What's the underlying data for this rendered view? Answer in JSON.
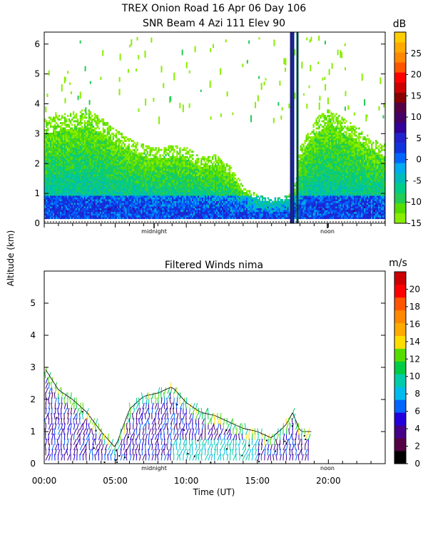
{
  "figure": {
    "title_line1": "TREX Onion Road  16 Apr 06 Day 106",
    "shared_ylabel": "Altitude (km)",
    "shared_xlabel": "Time (UT)",
    "x_tick_labels": [
      "00:00",
      "05:00",
      "10:00",
      "15:00",
      "20:00"
    ],
    "day_markers": [
      "midnight",
      "noon"
    ]
  },
  "chart_data": [
    {
      "type": "heatmap",
      "title": "SNR Beam 4 Azi 111 Elev 90",
      "xlabel": "Time (UT)",
      "ylabel": "Altitude (km)",
      "xlim": [
        0,
        24
      ],
      "ylim": [
        0,
        6.4
      ],
      "y_ticks": [
        0,
        1,
        2,
        3,
        4,
        5,
        6
      ],
      "colorbar_label": "dB",
      "colorbar_ticks": [
        -15,
        -10,
        -5,
        0,
        5,
        10,
        15,
        20,
        25
      ],
      "colorbar_levels": [
        -15,
        -12.5,
        -10,
        -7.5,
        -5,
        -2.5,
        0,
        2.5,
        5,
        7.5,
        10,
        12.5,
        15,
        17.5,
        20,
        22.5,
        25,
        27.5,
        30
      ],
      "colorbar_colors": [
        "#88ee00",
        "#55dd00",
        "#22cc55",
        "#00cc88",
        "#00bbbb",
        "#00aaee",
        "#0066ff",
        "#1133dd",
        "#2222cc",
        "#330099",
        "#440066",
        "#550044",
        "#880000",
        "#cc0000",
        "#ff0000",
        "#ff5500",
        "#ff8800",
        "#ffaa00",
        "#ffcc00"
      ],
      "echo_top_km": [
        {
          "t": 0,
          "top": 3.5
        },
        {
          "t": 1,
          "top": 3.6
        },
        {
          "t": 2,
          "top": 3.7
        },
        {
          "t": 3,
          "top": 3.8
        },
        {
          "t": 4,
          "top": 3.5
        },
        {
          "t": 5,
          "top": 3.1
        },
        {
          "t": 6,
          "top": 2.8
        },
        {
          "t": 7,
          "top": 2.6
        },
        {
          "t": 8,
          "top": 2.5
        },
        {
          "t": 9,
          "top": 2.6
        },
        {
          "t": 10,
          "top": 2.5
        },
        {
          "t": 11,
          "top": 2.2
        },
        {
          "t": 12,
          "top": 2.3
        },
        {
          "t": 13,
          "top": 1.9
        },
        {
          "t": 14,
          "top": 1.2
        },
        {
          "t": 15,
          "top": 0.9
        },
        {
          "t": 16,
          "top": 0.8
        },
        {
          "t": 17,
          "top": 0.9
        },
        {
          "t": 17.5,
          "top": 1.0
        },
        {
          "t": 18,
          "top": 2.6
        },
        {
          "t": 19,
          "top": 3.5
        },
        {
          "t": 20,
          "top": 3.8
        },
        {
          "t": 21,
          "top": 3.5
        },
        {
          "t": 22,
          "top": 3.2
        },
        {
          "t": 23,
          "top": 2.8
        },
        {
          "t": 24,
          "top": 2.6
        }
      ],
      "vertical_spike_times": [
        17.35,
        17.5,
        17.8
      ]
    },
    {
      "type": "vector",
      "title": "Filtered Winds nima",
      "xlabel": "Time (UT)",
      "ylabel": "Altitude (km)",
      "xlim": [
        0,
        24
      ],
      "ylim": [
        0,
        6
      ],
      "y_ticks": [
        0,
        1,
        2,
        3,
        4,
        5
      ],
      "colorbar_label": "m/s",
      "colorbar_ticks": [
        0,
        2,
        4,
        6,
        8,
        10,
        12,
        14,
        16,
        18,
        20
      ],
      "colorbar_colors": [
        "#000000",
        "#550044",
        "#440088",
        "#2200dd",
        "#0066ff",
        "#00bbee",
        "#00ccaa",
        "#00cc44",
        "#55dd00",
        "#ffdd00",
        "#ffaa00",
        "#ff8800",
        "#ff5500",
        "#ff0000",
        "#cc0000"
      ],
      "wind_top_km": [
        {
          "t": 0,
          "top": 3.0
        },
        {
          "t": 1,
          "top": 2.3
        },
        {
          "t": 2,
          "top": 2.0
        },
        {
          "t": 3,
          "top": 1.6
        },
        {
          "t": 4,
          "top": 1.0
        },
        {
          "t": 5,
          "top": 0.5
        },
        {
          "t": 6,
          "top": 1.7
        },
        {
          "t": 7,
          "top": 2.1
        },
        {
          "t": 8,
          "top": 2.2
        },
        {
          "t": 9,
          "top": 2.4
        },
        {
          "t": 10,
          "top": 1.9
        },
        {
          "t": 11,
          "top": 1.6
        },
        {
          "t": 12,
          "top": 1.5
        },
        {
          "t": 13,
          "top": 1.3
        },
        {
          "t": 14,
          "top": 1.1
        },
        {
          "t": 15,
          "top": 1.0
        },
        {
          "t": 16,
          "top": 0.8
        },
        {
          "t": 17,
          "top": 1.2
        },
        {
          "t": 17.5,
          "top": 1.6
        },
        {
          "t": 18,
          "top": 1.0
        }
      ],
      "wind_end_time": 18.8
    }
  ]
}
